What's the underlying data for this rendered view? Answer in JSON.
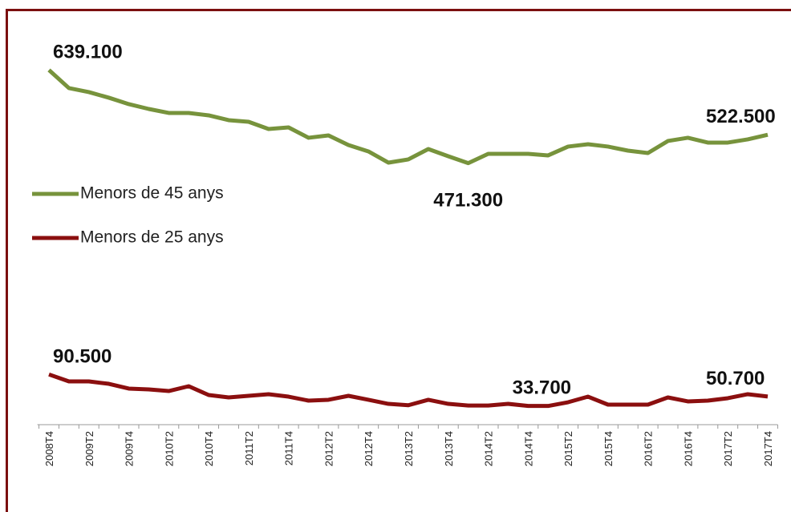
{
  "chart_data": {
    "type": "line",
    "categories": [
      "2008T4",
      null,
      "2009T2",
      null,
      "2009T4",
      null,
      "2010T2",
      null,
      "2010T4",
      null,
      "2011T2",
      null,
      "2011T4",
      null,
      "2012T2",
      null,
      "2012T4",
      null,
      "2013T2",
      null,
      "2013T4",
      null,
      "2014T2",
      null,
      "2014T4",
      null,
      "2015T2",
      null,
      "2015T4",
      null,
      "2016T2",
      null,
      "2016T4",
      null,
      "2017T2",
      null,
      "2017T4"
    ],
    "series": [
      {
        "name": "Menors de 45 anys",
        "color": "#77933c",
        "values": [
          639100,
          606500,
          599300,
          589200,
          577600,
          568900,
          561700,
          561700,
          557400,
          548700,
          545800,
          532800,
          535700,
          517000,
          521300,
          504000,
          492400,
          472200,
          478000,
          496700,
          483700,
          471300,
          488100,
          488100,
          488100,
          485200,
          501100,
          505400,
          501100,
          493800,
          489500,
          511200,
          517000,
          508300,
          508300,
          514100,
          522500
        ],
        "value_labels": [
          "639.100",
          null,
          null,
          null,
          null,
          null,
          null,
          null,
          null,
          null,
          null,
          null,
          null,
          null,
          null,
          null,
          null,
          null,
          null,
          null,
          null,
          "471.300",
          null,
          null,
          null,
          null,
          null,
          null,
          null,
          null,
          null,
          null,
          null,
          null,
          null,
          null,
          "522.500"
        ]
      },
      {
        "name": "Menors de 25 anys",
        "color": "#8b0f0f",
        "values": [
          90500,
          78000,
          78000,
          73600,
          65000,
          63500,
          60600,
          69300,
          53400,
          49100,
          52000,
          54900,
          50500,
          43300,
          44800,
          52000,
          44800,
          37500,
          35000,
          44800,
          37500,
          34500,
          34500,
          37500,
          33700,
          33700,
          40400,
          50500,
          36100,
          36100,
          36100,
          49100,
          41900,
          43300,
          47700,
          54900,
          50700
        ],
        "value_labels": [
          "90.500",
          null,
          null,
          null,
          null,
          null,
          null,
          null,
          null,
          null,
          null,
          null,
          null,
          null,
          null,
          null,
          null,
          null,
          null,
          null,
          null,
          null,
          null,
          null,
          "33.700",
          null,
          null,
          null,
          null,
          null,
          null,
          null,
          null,
          null,
          null,
          null,
          "50.700"
        ]
      }
    ],
    "ylim": [
      0,
      740000
    ],
    "legend": "left"
  }
}
